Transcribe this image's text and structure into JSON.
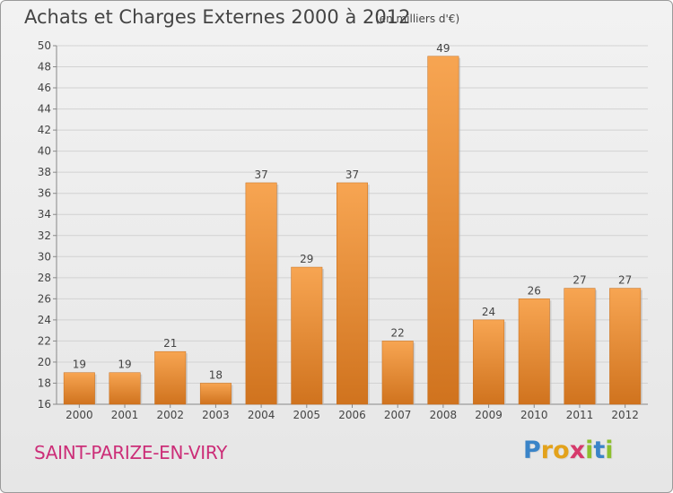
{
  "header": {
    "title": "Achats et Charges Externes 2000 à 2012",
    "subtitle": "(en milliers d'€)"
  },
  "footer": {
    "commune": "SAINT-PARIZE-EN-VIRY",
    "logo_letters": [
      "P",
      "r",
      "o",
      "x",
      "i",
      "t",
      "i"
    ],
    "logo_colors": [
      "#3a84c8",
      "#e3a21b",
      "#e3a21b",
      "#d63a6c",
      "#8dbf2e",
      "#3a84c8",
      "#8dbf2e"
    ]
  },
  "chart_data": {
    "type": "bar",
    "categories": [
      "2000",
      "2001",
      "2002",
      "2003",
      "2004",
      "2005",
      "2006",
      "2007",
      "2008",
      "2009",
      "2010",
      "2011",
      "2012"
    ],
    "values": [
      19,
      19,
      21,
      18,
      37,
      29,
      37,
      22,
      49,
      24,
      26,
      27,
      27
    ],
    "ylim": [
      16,
      50
    ],
    "yticks": [
      16,
      18,
      20,
      22,
      24,
      26,
      28,
      30,
      32,
      34,
      36,
      38,
      40,
      42,
      44,
      46,
      48,
      50
    ],
    "grid": true,
    "bar_color": "#f0943a",
    "title": "Achats et Charges Externes 2000 à 2012",
    "xlabel": "",
    "ylabel": ""
  }
}
